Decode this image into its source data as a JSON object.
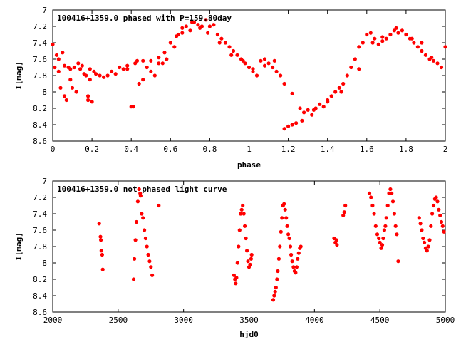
{
  "chart_data": [
    {
      "type": "scatter",
      "title": "100416+1359.0 phased with P=159.80day",
      "xlabel": "phase",
      "ylabel": "I[mag]",
      "xlim": [
        0,
        2
      ],
      "ylim": [
        8.6,
        7.0
      ],
      "y_inverted": true,
      "x_ticks": [
        "0",
        "0.2",
        "0.4",
        "0.6",
        "0.8",
        "1",
        "1.2",
        "1.4",
        "1.6",
        "1.8",
        "2"
      ],
      "y_ticks": [
        "7",
        "7.2",
        "7.4",
        "7.6",
        "7.8",
        "8",
        "8.2",
        "8.4",
        "8.6"
      ],
      "grid": false,
      "legend": "none",
      "marker": "filled-circle",
      "marker_color": "#ff0000",
      "series": [
        {
          "x": [
            0.0,
            0.01,
            0.02,
            0.03,
            0.04,
            0.05,
            0.06,
            0.07,
            0.08,
            0.09,
            0.1,
            0.11,
            0.12,
            0.13,
            0.14,
            0.15,
            0.16,
            0.17,
            0.18,
            0.19,
            0.2,
            0.21,
            0.22,
            0.24,
            0.26,
            0.28,
            0.3,
            0.32,
            0.34,
            0.36,
            0.38,
            0.4,
            0.42,
            0.44,
            0.46,
            0.48,
            0.5,
            0.52,
            0.54,
            0.56,
            0.58,
            0.6,
            0.62,
            0.64,
            0.66,
            0.68,
            0.7,
            0.72,
            0.74,
            0.76,
            0.78,
            0.8,
            0.82,
            0.84,
            0.86,
            0.88,
            0.9,
            0.92,
            0.94,
            0.96,
            0.98,
            1.0,
            1.02,
            1.04,
            1.06,
            1.08,
            1.1,
            1.12,
            1.14,
            1.16,
            1.18,
            1.2,
            1.22,
            1.24,
            1.26,
            1.28,
            1.3,
            1.32,
            1.34,
            1.36,
            1.38,
            1.4,
            1.42,
            1.44,
            1.46,
            1.48,
            1.5,
            1.52,
            1.54,
            1.56,
            1.58,
            1.6,
            1.62,
            1.64,
            1.66,
            1.68,
            1.7,
            1.72,
            1.74,
            1.76,
            1.78,
            1.8,
            1.82,
            1.84,
            1.86,
            1.88,
            1.9,
            1.92,
            1.94,
            1.96,
            1.98,
            2.0,
            0.03,
            0.06,
            0.09,
            0.18,
            0.19,
            0.38,
            0.41,
            0.43,
            0.46,
            0.5,
            0.54,
            0.57,
            0.63,
            0.66,
            0.71,
            0.75,
            0.79,
            0.85,
            0.91,
            0.97,
            1.02,
            1.08,
            1.13,
            1.18,
            1.22,
            1.27,
            1.33,
            1.4,
            1.47,
            1.56,
            1.63,
            1.68,
            1.75,
            1.83,
            1.88,
            1.93
          ],
          "y": [
            7.42,
            7.7,
            7.55,
            7.6,
            7.95,
            7.52,
            8.05,
            8.1,
            7.7,
            7.72,
            7.95,
            7.7,
            8.0,
            7.65,
            7.72,
            7.68,
            7.78,
            7.8,
            8.05,
            7.72,
            8.12,
            7.75,
            7.78,
            7.8,
            7.82,
            7.8,
            7.75,
            7.78,
            7.7,
            7.72,
            7.68,
            8.18,
            7.65,
            7.9,
            7.62,
            7.7,
            7.62,
            7.8,
            7.58,
            7.65,
            7.6,
            7.4,
            7.45,
            7.3,
            7.22,
            7.2,
            7.25,
            7.15,
            7.18,
            7.2,
            7.12,
            7.2,
            7.18,
            7.3,
            7.35,
            7.4,
            7.45,
            7.5,
            7.55,
            7.6,
            7.65,
            7.7,
            7.75,
            7.8,
            7.62,
            7.68,
            7.65,
            7.7,
            7.75,
            7.8,
            8.45,
            8.42,
            8.4,
            8.38,
            8.2,
            8.25,
            8.22,
            8.28,
            8.2,
            8.15,
            8.18,
            8.1,
            8.05,
            8.0,
            7.95,
            7.9,
            7.8,
            7.7,
            7.6,
            7.45,
            7.4,
            7.3,
            7.28,
            7.35,
            7.42,
            7.38,
            7.35,
            7.3,
            7.25,
            7.28,
            7.25,
            7.3,
            7.35,
            7.4,
            7.45,
            7.5,
            7.55,
            7.6,
            7.62,
            7.65,
            7.7,
            7.45,
            7.75,
            7.68,
            7.85,
            8.1,
            7.85,
            7.72,
            8.18,
            7.62,
            7.85,
            7.75,
            7.65,
            7.52,
            7.32,
            7.28,
            7.15,
            7.22,
            7.28,
            7.4,
            7.55,
            7.62,
            7.72,
            7.6,
            7.62,
            7.9,
            8.02,
            8.35,
            8.22,
            8.12,
            8.0,
            7.72,
            7.4,
            7.33,
            7.22,
            7.35,
            7.4,
            7.58
          ],
          "note": "values estimated from the plot"
        }
      ]
    },
    {
      "type": "scatter",
      "title": "100416+1359.0 not phased light curve",
      "xlabel": "hjd0",
      "ylabel": "I[mag]",
      "xlim": [
        2000,
        5000
      ],
      "ylim": [
        8.6,
        7.0
      ],
      "y_inverted": true,
      "x_ticks": [
        "2000",
        "2500",
        "3000",
        "3500",
        "4000",
        "4500",
        "5000"
      ],
      "y_ticks": [
        "7",
        "7.2",
        "7.4",
        "7.6",
        "7.8",
        "8",
        "8.2",
        "8.4",
        "8.6"
      ],
      "grid": false,
      "legend": "none",
      "marker": "filled-circle",
      "marker_color": "#ff0000",
      "series": [
        {
          "x": [
            2355,
            2365,
            2368,
            2372,
            2378,
            2382,
            2618,
            2624,
            2632,
            2640,
            2650,
            2660,
            2668,
            2672,
            2680,
            2690,
            2700,
            2710,
            2720,
            2730,
            2740,
            2750,
            2760,
            2810,
            3385,
            3392,
            3398,
            3404,
            3412,
            3420,
            3428,
            3436,
            3444,
            3452,
            3460,
            3468,
            3476,
            3484,
            3492,
            3500,
            3508,
            3516,
            3520,
            3685,
            3692,
            3700,
            3706,
            3714,
            3720,
            3728,
            3736,
            3744,
            3752,
            3760,
            3768,
            3776,
            3784,
            3792,
            3800,
            3808,
            3816,
            3822,
            3830,
            3840,
            3848,
            3856,
            3864,
            3872,
            3880,
            3888,
            3896,
            4150,
            4160,
            4168,
            4172,
            4220,
            4228,
            4236,
            4420,
            4432,
            4444,
            4456,
            4468,
            4480,
            4492,
            4500,
            4510,
            4518,
            4526,
            4534,
            4542,
            4550,
            4560,
            4570,
            4580,
            4590,
            4600,
            4610,
            4620,
            4630,
            4640,
            4800,
            4810,
            4820,
            4830,
            4840,
            4850,
            4860,
            4870,
            4880,
            4890,
            4900,
            4910,
            4920,
            4930,
            4940,
            4950,
            4960,
            4970,
            4980,
            4990
          ],
          "y": [
            7.52,
            7.68,
            7.72,
            7.85,
            7.9,
            8.08,
            8.2,
            7.95,
            7.72,
            7.5,
            7.25,
            7.1,
            7.15,
            7.18,
            7.4,
            7.45,
            7.6,
            7.7,
            7.8,
            7.9,
            7.98,
            8.05,
            8.15,
            7.3,
            8.15,
            8.2,
            8.25,
            8.18,
            8.0,
            7.8,
            7.6,
            7.4,
            7.35,
            7.3,
            7.4,
            7.55,
            7.7,
            7.85,
            7.98,
            8.05,
            8.02,
            7.95,
            7.9,
            8.45,
            8.4,
            8.35,
            8.3,
            8.2,
            8.1,
            7.95,
            7.8,
            7.62,
            7.45,
            7.3,
            7.28,
            7.35,
            7.45,
            7.55,
            7.65,
            7.7,
            7.8,
            7.9,
            7.98,
            8.05,
            8.1,
            8.12,
            8.05,
            7.95,
            7.88,
            7.82,
            7.8,
            7.7,
            7.75,
            7.72,
            7.78,
            7.42,
            7.38,
            7.3,
            7.15,
            7.2,
            7.3,
            7.4,
            7.55,
            7.65,
            7.7,
            7.75,
            7.82,
            7.78,
            7.7,
            7.6,
            7.55,
            7.45,
            7.3,
            7.15,
            7.1,
            7.15,
            7.25,
            7.4,
            7.55,
            7.65,
            7.98,
            7.45,
            7.52,
            7.6,
            7.7,
            7.75,
            7.82,
            7.85,
            7.8,
            7.72,
            7.55,
            7.4,
            7.3,
            7.22,
            7.2,
            7.25,
            7.35,
            7.42,
            7.5,
            7.55,
            7.62
          ],
          "note": "values estimated from the plot"
        }
      ]
    }
  ]
}
